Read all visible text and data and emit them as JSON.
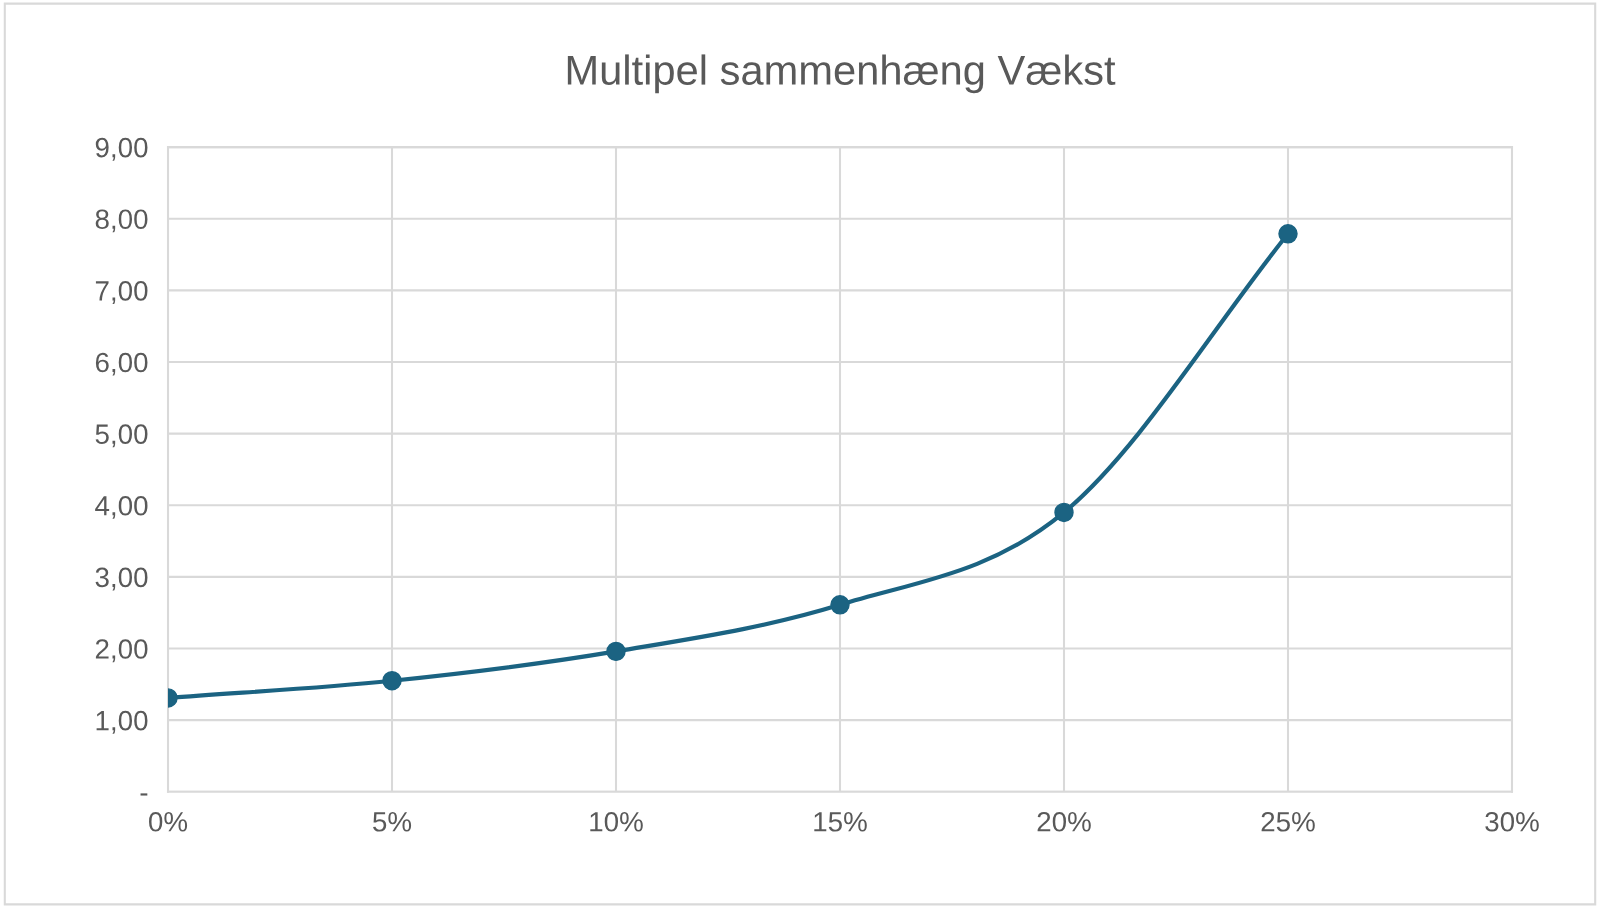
{
  "chart_data": {
    "type": "line",
    "title": "Multipel sammenhæng Vækst",
    "x": [
      0,
      5,
      10,
      15,
      20,
      25
    ],
    "series": [
      {
        "color": "#1b6382",
        "values": [
          1.31,
          1.55,
          1.96,
          2.61,
          3.9,
          7.79
        ]
      }
    ],
    "xlim": [
      0,
      30
    ],
    "xticks": [
      {
        "value": 0,
        "label": "0%"
      },
      {
        "value": 5,
        "label": "5%"
      },
      {
        "value": 10,
        "label": "10%"
      },
      {
        "value": 15,
        "label": "15%"
      },
      {
        "value": 20,
        "label": "20%"
      },
      {
        "value": 25,
        "label": "25%"
      },
      {
        "value": 30,
        "label": "30%"
      }
    ],
    "ylim": [
      0,
      9
    ],
    "yticks": [
      {
        "value": 0,
        "label": "-"
      },
      {
        "value": 1,
        "label": "1,00"
      },
      {
        "value": 2,
        "label": "2,00"
      },
      {
        "value": 3,
        "label": "3,00"
      },
      {
        "value": 4,
        "label": "4,00"
      },
      {
        "value": 5,
        "label": "5,00"
      },
      {
        "value": 6,
        "label": "6,00"
      },
      {
        "value": 7,
        "label": "7,00"
      },
      {
        "value": 8,
        "label": "8,00"
      },
      {
        "value": 9,
        "label": "9,00"
      }
    ],
    "grid": true,
    "marker": "circle",
    "line_style": "solid"
  }
}
